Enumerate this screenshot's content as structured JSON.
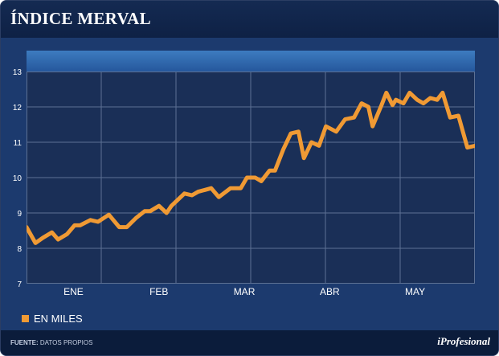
{
  "header": {
    "title": "ÍNDICE MERVAL"
  },
  "legend": {
    "label": "EN MILES",
    "color": "#f09a34"
  },
  "footer": {
    "source_label": "FUENTE:",
    "source_text": "DATOS PROPIOS",
    "brand": "iProfesional"
  },
  "colors": {
    "background": "#0f2347",
    "plot": "#1a2f57",
    "grid": "#5d7194",
    "line": "#f09a34",
    "band": "#3d7cc0"
  },
  "chart_data": {
    "type": "line",
    "title": "ÍNDICE MERVAL",
    "xlabel": "",
    "ylabel": "",
    "ylim": [
      7,
      13
    ],
    "yticks": [
      7,
      8,
      9,
      10,
      11,
      12,
      13
    ],
    "categories": [
      "ENE",
      "FEB",
      "MAR",
      "ABR",
      "MAY"
    ],
    "grid": true,
    "legend_position": "bottom-left",
    "series": [
      {
        "name": "EN MILES",
        "x": [
          0,
          0.13,
          0.24,
          0.37,
          0.46,
          0.59,
          0.7,
          0.78,
          0.93,
          1.04,
          1.2,
          1.35,
          1.46,
          1.59,
          1.72,
          1.8,
          1.93,
          2.04,
          2.11,
          2.3,
          2.41,
          2.5,
          2.69,
          2.8,
          2.97,
          3.04,
          3.12,
          3.21,
          3.33,
          3.42,
          3.54,
          3.62,
          3.74,
          3.85,
          3.96,
          4.04,
          4.15,
          4.26,
          4.36,
          4.51,
          4.64,
          4.77,
          4.88,
          4.98,
          5.04,
          5.17,
          5.24,
          5.33,
          5.38,
          5.49,
          5.58,
          5.69,
          5.78,
          5.88,
          5.98,
          6.06,
          6.17,
          6.29,
          6.42,
          6.53
        ],
        "values": [
          8.6,
          8.15,
          8.3,
          8.45,
          8.25,
          8.4,
          8.65,
          8.65,
          8.8,
          8.75,
          8.95,
          8.6,
          8.6,
          8.85,
          9.05,
          9.05,
          9.2,
          9.0,
          9.2,
          9.55,
          9.5,
          9.6,
          9.7,
          9.45,
          9.7,
          9.7,
          9.7,
          10.0,
          10.0,
          9.9,
          10.2,
          10.2,
          10.8,
          11.25,
          11.3,
          10.55,
          11.0,
          10.9,
          11.45,
          11.3,
          11.65,
          11.7,
          12.1,
          12.0,
          11.45,
          12.05,
          12.4,
          12.05,
          12.2,
          12.1,
          12.4,
          12.2,
          12.1,
          12.25,
          12.2,
          12.4,
          11.7,
          11.75,
          10.85,
          10.9
        ]
      }
    ]
  }
}
